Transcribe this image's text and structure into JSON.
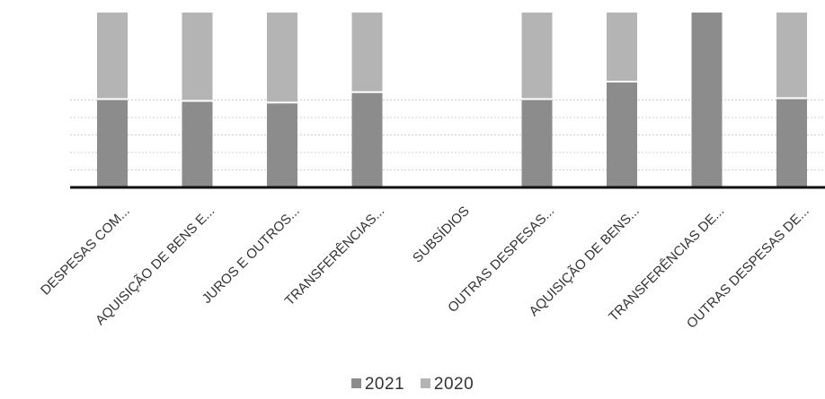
{
  "chart_data": {
    "type": "bar",
    "stacked": true,
    "categories": [
      "DESPESAS COM...",
      "AQUISIÇÃO DE BENS E...",
      "JUROS E OUTROS...",
      "TRANSFERÊNCIAS...",
      "SUBSÍDIOS",
      "OUTRAS DESPESAS...",
      "AQUISIÇÃO DE BENS...",
      "TRANSFERÊNCIAS DE...",
      "OUTRAS DESPESAS DE..."
    ],
    "series": [
      {
        "name": "2021",
        "color": "#8c8c8c",
        "values": [
          50.5,
          49.5,
          48.5,
          54.5,
          0,
          50.5,
          60.5,
          100,
          51
        ]
      },
      {
        "name": "2020",
        "color": "#b4b4b4",
        "values": [
          49.5,
          50.5,
          51.5,
          45.5,
          0,
          49.5,
          39.5,
          0,
          49
        ]
      }
    ],
    "ylim": [
      0,
      100
    ],
    "grid": true,
    "legend": "bottom"
  }
}
